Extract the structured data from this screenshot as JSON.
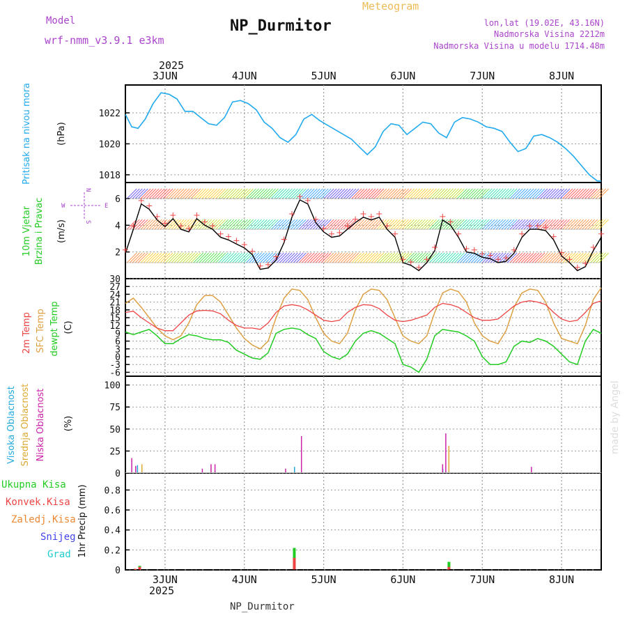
{
  "header": {
    "model_label": "Model",
    "model_name": "wrf-nmm_v3.9.1 e3km",
    "title": "NP_Durmitor",
    "subtitle": "Meteogram",
    "lonlat": "lon,lat (19.02E, 43.16N)",
    "elevation": "Nadmorska Visina 2212m",
    "model_elevation": "Nadmorska Visina u modelu 1714.48m",
    "watermark": "made by Angel",
    "footer_title": "NP_Durmitor"
  },
  "time_axis": {
    "year": "2025",
    "day_labels": [
      "3JUN",
      "4JUN",
      "5JUN",
      "6JUN",
      "7JUN",
      "8JUN"
    ],
    "day_positions": [
      3,
      4,
      5,
      6,
      7,
      8
    ],
    "range": [
      2.5,
      8.5
    ]
  },
  "colors": {
    "pressure": "#22aaee",
    "wind_obs": "#000000",
    "wind_cross": "#ee4444",
    "t2m": "#ee4444",
    "sfc": "#dda044",
    "dewpt": "#22cc22",
    "high_cloud": "#22aadd",
    "mid_cloud": "#ddaa33",
    "low_cloud": "#cc22aa",
    "total_rain": "#22cc22",
    "conv_rain": "#ee4444",
    "freezing": "#ee8833",
    "snow": "#4444ee",
    "hail": "#22cccc",
    "axis_label_purple": "#aa44cc"
  },
  "panels": {
    "pressure": {
      "ylabel_main": "Pritisak na nivou mora",
      "unit": "(hPa)",
      "ticks": [
        "1018",
        "1020",
        "1022"
      ]
    },
    "wind": {
      "ylabel_line1": "10m Vjetar",
      "ylabel_line2": "Brzina i Pravac",
      "unit": "(m/s)",
      "ticks": [
        "2",
        "4",
        "6"
      ],
      "compass": {
        "n": "N",
        "s": "S",
        "w": "W",
        "e": "E"
      }
    },
    "temp": {
      "label_t2m": "2m Temp",
      "label_sfc": "SFC Temp",
      "label_dew": "dewpt Temp",
      "unit": "(C)",
      "ticks": [
        "-6",
        "-3",
        "0",
        "3",
        "6",
        "9",
        "12",
        "15",
        "18",
        "21",
        "24",
        "27",
        "30"
      ]
    },
    "cloud": {
      "label_high": "Visoka Oblacnost",
      "label_mid": "Srednja Oblacnost",
      "label_low": "Niska Oblacnost",
      "unit": "(%)",
      "ticks": [
        "0",
        "25",
        "50",
        "75",
        "100"
      ]
    },
    "precip": {
      "label_total": "Ukupna Kisa",
      "label_conv": "Konvek.Kisa",
      "label_freezing": "Zaledj.Kisa",
      "label_snow": "Snijeg",
      "label_hail": "Grad",
      "ylabel": "1hr Precip (mm)",
      "ticks": [
        "0",
        "0.2",
        "0.4",
        "0.6",
        "0.8"
      ]
    }
  },
  "chart_data": [
    {
      "type": "line",
      "title": "Pritisak na nivou mora",
      "ylabel": "hPa",
      "ylim": [
        1017.5,
        1023.8
      ],
      "x": [
        2.5,
        2.58,
        2.66,
        2.75,
        2.85,
        2.95,
        3.05,
        3.15,
        3.25,
        3.35,
        3.45,
        3.55,
        3.65,
        3.75,
        3.85,
        3.95,
        4.05,
        4.15,
        4.25,
        4.35,
        4.45,
        4.55,
        4.65,
        4.75,
        4.85,
        4.95,
        5.05,
        5.15,
        5.25,
        5.35,
        5.45,
        5.55,
        5.65,
        5.75,
        5.85,
        5.95,
        6.05,
        6.15,
        6.25,
        6.35,
        6.45,
        6.55,
        6.65,
        6.75,
        6.85,
        6.95,
        7.05,
        7.15,
        7.25,
        7.35,
        7.45,
        7.55,
        7.65,
        7.75,
        7.85,
        7.95,
        8.05,
        8.15,
        8.25,
        8.35,
        8.45,
        8.5
      ],
      "values": [
        1021.9,
        1021.1,
        1021.0,
        1021.6,
        1022.6,
        1023.3,
        1023.2,
        1022.9,
        1022.1,
        1022.1,
        1021.7,
        1021.3,
        1021.2,
        1021.7,
        1022.7,
        1022.8,
        1022.6,
        1022.2,
        1021.4,
        1021.0,
        1020.4,
        1020.1,
        1020.6,
        1021.6,
        1021.9,
        1021.5,
        1021.2,
        1020.9,
        1020.6,
        1020.3,
        1019.8,
        1019.3,
        1019.8,
        1020.8,
        1021.3,
        1021.2,
        1020.6,
        1021.0,
        1021.4,
        1021.3,
        1020.7,
        1020.4,
        1021.4,
        1021.7,
        1021.6,
        1021.4,
        1021.1,
        1021.0,
        1020.8,
        1020.1,
        1019.5,
        1019.7,
        1020.5,
        1020.6,
        1020.4,
        1020.1,
        1019.7,
        1019.2,
        1018.6,
        1018.0,
        1017.6,
        1017.6
      ]
    },
    {
      "type": "line",
      "title": "10m Vjetar Brzina i Pravac",
      "ylabel": "m/s",
      "ylim": [
        0,
        7.2
      ],
      "x": [
        2.5,
        2.6,
        2.7,
        2.8,
        2.9,
        3.0,
        3.1,
        3.2,
        3.3,
        3.4,
        3.5,
        3.6,
        3.7,
        3.8,
        3.9,
        4.0,
        4.1,
        4.2,
        4.3,
        4.4,
        4.5,
        4.6,
        4.7,
        4.8,
        4.9,
        5.0,
        5.1,
        5.2,
        5.3,
        5.4,
        5.5,
        5.6,
        5.7,
        5.8,
        5.9,
        6.0,
        6.1,
        6.2,
        6.3,
        6.4,
        6.5,
        6.6,
        6.7,
        6.8,
        6.9,
        7.0,
        7.1,
        7.2,
        7.3,
        7.4,
        7.5,
        7.6,
        7.7,
        7.8,
        7.9,
        8.0,
        8.1,
        8.2,
        8.3,
        8.4,
        8.5
      ],
      "values": [
        1.9,
        3.7,
        5.6,
        5.2,
        4.4,
        3.9,
        4.5,
        3.7,
        3.5,
        4.5,
        4.0,
        3.7,
        3.1,
        2.9,
        2.6,
        2.3,
        1.8,
        0.7,
        0.8,
        1.4,
        2.7,
        4.6,
        5.9,
        5.6,
        4.2,
        3.5,
        3.1,
        3.2,
        3.7,
        4.2,
        4.6,
        4.4,
        4.6,
        3.7,
        3.1,
        1.2,
        1.0,
        0.6,
        1.2,
        2.1,
        4.4,
        4.0,
        3.1,
        2.0,
        1.9,
        1.6,
        1.5,
        1.2,
        1.3,
        1.9,
        3.1,
        3.7,
        3.7,
        3.6,
        2.9,
        1.7,
        1.2,
        0.6,
        0.9,
        2.1,
        3.1
      ]
    },
    {
      "type": "line",
      "title": "Temperature",
      "ylabel": "C",
      "ylim": [
        -7.5,
        30
      ],
      "x": [
        2.5,
        2.6,
        2.7,
        2.8,
        2.9,
        3.0,
        3.1,
        3.2,
        3.3,
        3.4,
        3.5,
        3.6,
        3.7,
        3.8,
        3.9,
        4.0,
        4.1,
        4.2,
        4.3,
        4.4,
        4.5,
        4.6,
        4.7,
        4.8,
        4.9,
        5.0,
        5.1,
        5.2,
        5.3,
        5.4,
        5.5,
        5.6,
        5.7,
        5.8,
        5.9,
        6.0,
        6.1,
        6.2,
        6.3,
        6.4,
        6.5,
        6.6,
        6.7,
        6.8,
        6.9,
        7.0,
        7.1,
        7.2,
        7.3,
        7.4,
        7.5,
        7.6,
        7.7,
        7.8,
        7.9,
        8.0,
        8.1,
        8.2,
        8.3,
        8.4,
        8.5
      ],
      "series": [
        {
          "name": "2m Temp",
          "values": [
            17,
            17.5,
            15,
            13,
            11,
            10,
            10,
            13,
            16,
            17.6,
            17.8,
            17.6,
            16.5,
            14,
            12,
            11,
            11,
            10.5,
            13,
            17,
            19.5,
            20,
            19.5,
            18,
            16,
            14,
            13.5,
            14,
            17,
            19,
            20,
            19.8,
            18.5,
            16,
            14,
            13.5,
            14,
            15,
            16,
            19,
            20.5,
            20,
            19,
            17,
            15,
            14,
            14,
            14.5,
            17,
            19.5,
            21,
            21.5,
            21,
            20,
            17,
            14.5,
            13.5,
            14,
            17,
            20.5,
            21.5
          ]
        },
        {
          "name": "SFC Temp",
          "values": [
            20.5,
            22.5,
            19,
            15,
            11,
            8,
            6.5,
            8,
            13,
            20,
            23.5,
            23.5,
            21,
            16,
            11,
            7,
            4.5,
            3,
            6,
            15,
            22.5,
            26,
            25.5,
            22,
            15,
            9,
            6,
            5,
            9,
            18,
            24,
            26,
            25.5,
            22,
            15,
            8,
            6,
            5,
            8,
            17,
            24.5,
            26,
            25,
            21,
            13,
            8,
            6,
            5,
            10,
            19,
            24.5,
            26,
            25.5,
            21,
            13,
            7,
            6,
            5,
            12,
            22,
            26.5
          ]
        },
        {
          "name": "dewpt Temp",
          "values": [
            9.5,
            8.5,
            9.5,
            10.5,
            8,
            5,
            5,
            7,
            8.5,
            8,
            7,
            6.5,
            6.5,
            5.5,
            2.5,
            1,
            -0.5,
            -1,
            1.5,
            9,
            10.5,
            11,
            10.5,
            8.5,
            7,
            2,
            0,
            -1,
            1,
            6,
            9,
            10,
            9,
            7,
            5,
            -3,
            -4,
            -6,
            -1,
            8,
            10.5,
            10,
            9.5,
            8,
            6,
            0,
            -3,
            -3,
            -2,
            4,
            6,
            5.5,
            7,
            6,
            4,
            1,
            -2,
            -3,
            6,
            10.5,
            9
          ]
        }
      ]
    },
    {
      "type": "bar",
      "title": "Oblacnost",
      "ylabel": "%",
      "ylim": [
        0,
        110
      ],
      "series": [
        {
          "name": "Visoka Oblacnost",
          "x": [
            2.67,
            4.65,
            6.52
          ],
          "values": [
            9,
            7,
            5
          ]
        },
        {
          "name": "Srednja Oblacnost",
          "x": [
            2.7,
            6.57
          ],
          "values": [
            10,
            31
          ]
        },
        {
          "name": "Niska Oblacnost",
          "x": [
            2.58,
            2.63,
            3.47,
            3.58,
            3.63,
            4.52,
            4.72,
            6.5,
            6.54,
            7.62
          ],
          "values": [
            17,
            8,
            5,
            10,
            10,
            5,
            42,
            10,
            45,
            7
          ]
        }
      ]
    },
    {
      "type": "bar",
      "title": "1hr Precip",
      "ylabel": "mm",
      "ylim": [
        0,
        0.97
      ],
      "series": [
        {
          "name": "Ukupna Kisa",
          "x": [
            2.62,
            2.68,
            4.63,
            6.58
          ],
          "values": [
            0.01,
            0.04,
            0.22,
            0.08
          ]
        },
        {
          "name": "Konvek.Kisa",
          "x": [
            2.62,
            2.68,
            4.63,
            6.58
          ],
          "values": [
            0.01,
            0.03,
            0.12,
            0.03
          ]
        }
      ]
    }
  ]
}
